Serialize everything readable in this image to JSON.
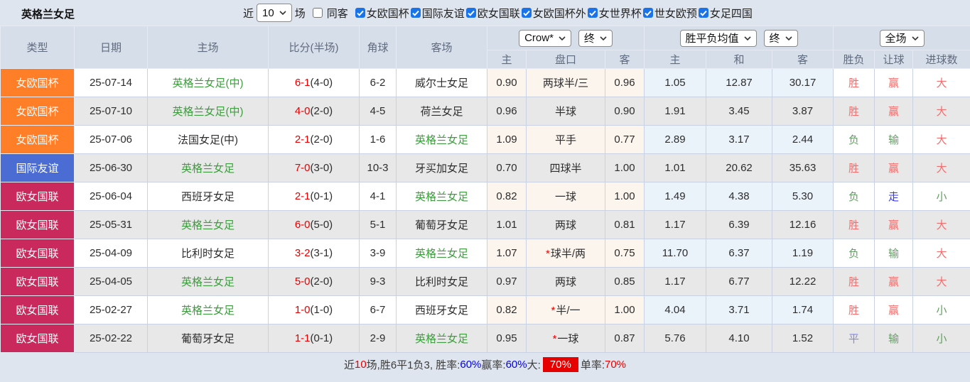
{
  "title": "英格兰女足",
  "colors": {
    "league_orange": "#ff7e27",
    "league_blue": "#4b6cd2",
    "league_rose": "#c9295c",
    "team_green": "#3d9c3d",
    "team_dark": "#2d2d2d",
    "score_red": "#e60000",
    "result_red": "#f26d6d",
    "result_green": "#5fa05f",
    "result_blue": "#3838ef",
    "result_purple": "#8686dc",
    "stat_blue": "#0000ee",
    "stat_red": "#e60000",
    "checkbox_blue": "#1a73e8"
  },
  "toolbar": {
    "recent_label": "近",
    "recent_count": "10",
    "games_label": "场",
    "same_away_label": "同客",
    "same_away_checked": false,
    "filters": [
      {
        "label": "女欧国杯",
        "checked": true
      },
      {
        "label": "国际友谊",
        "checked": true
      },
      {
        "label": "欧女国联",
        "checked": true
      },
      {
        "label": "女欧国杯外",
        "checked": true
      },
      {
        "label": "女世界杯",
        "checked": true
      },
      {
        "label": "世女欧预",
        "checked": true
      },
      {
        "label": "女足四国",
        "checked": true
      }
    ]
  },
  "table": {
    "headers": {
      "type": "类型",
      "date": "日期",
      "home": "主场",
      "score": "比分(半场)",
      "corner": "角球",
      "away": "客场",
      "selects": {
        "bookmaker": "Crow*",
        "odds_time": "终",
        "avg_type": "胜平负均值",
        "avg_time": "终",
        "period": "全场"
      },
      "sub": {
        "odds_home": "主",
        "handicap": "盘口",
        "odds_away": "客",
        "avg_home": "主",
        "avg_draw": "和",
        "avg_away": "客",
        "result": "胜负",
        "let_ball": "让球",
        "goals": "进球数"
      }
    },
    "rows": [
      {
        "type": "女欧国杯",
        "type_color": "league_orange",
        "date": "25-07-14",
        "home": "英格兰女足(中)",
        "home_green": true,
        "score_ft": "6-1",
        "score_ht": "(4-0)",
        "corner": "6-2",
        "away": "威尔士女足",
        "away_green": false,
        "odds_home": "0.90",
        "handicap": "两球半/三",
        "handicap_star": false,
        "odds_away": "0.96",
        "avg_home": "1.05",
        "avg_draw": "12.87",
        "avg_away": "30.17",
        "result": "胜",
        "result_color": "result_red",
        "let": "赢",
        "let_color": "result_red",
        "goals": "大",
        "goals_color": "result_red"
      },
      {
        "type": "女欧国杯",
        "type_color": "league_orange",
        "date": "25-07-10",
        "home": "英格兰女足(中)",
        "home_green": true,
        "score_ft": "4-0",
        "score_ht": "(2-0)",
        "corner": "4-5",
        "away": "荷兰女足",
        "away_green": false,
        "odds_home": "0.96",
        "handicap": "半球",
        "handicap_star": false,
        "odds_away": "0.90",
        "avg_home": "1.91",
        "avg_draw": "3.45",
        "avg_away": "3.87",
        "result": "胜",
        "result_color": "result_red",
        "let": "赢",
        "let_color": "result_red",
        "goals": "大",
        "goals_color": "result_red"
      },
      {
        "type": "女欧国杯",
        "type_color": "league_orange",
        "date": "25-07-06",
        "home": "法国女足(中)",
        "home_green": false,
        "score_ft": "2-1",
        "score_ht": "(2-0)",
        "corner": "1-6",
        "away": "英格兰女足",
        "away_green": true,
        "odds_home": "1.09",
        "handicap": "平手",
        "handicap_star": false,
        "odds_away": "0.77",
        "avg_home": "2.89",
        "avg_draw": "3.17",
        "avg_away": "2.44",
        "result": "负",
        "result_color": "result_green",
        "let": "输",
        "let_color": "result_green",
        "goals": "大",
        "goals_color": "result_red"
      },
      {
        "type": "国际友谊",
        "type_color": "league_blue",
        "date": "25-06-30",
        "home": "英格兰女足",
        "home_green": true,
        "score_ft": "7-0",
        "score_ht": "(3-0)",
        "corner": "10-3",
        "away": "牙买加女足",
        "away_green": false,
        "odds_home": "0.70",
        "handicap": "四球半",
        "handicap_star": false,
        "odds_away": "1.00",
        "avg_home": "1.01",
        "avg_draw": "20.62",
        "avg_away": "35.63",
        "result": "胜",
        "result_color": "result_red",
        "let": "赢",
        "let_color": "result_red",
        "goals": "大",
        "goals_color": "result_red"
      },
      {
        "type": "欧女国联",
        "type_color": "league_rose",
        "date": "25-06-04",
        "home": "西班牙女足",
        "home_green": false,
        "score_ft": "2-1",
        "score_ht": "(0-1)",
        "corner": "4-1",
        "away": "英格兰女足",
        "away_green": true,
        "odds_home": "0.82",
        "handicap": "一球",
        "handicap_star": false,
        "odds_away": "1.00",
        "avg_home": "1.49",
        "avg_draw": "4.38",
        "avg_away": "5.30",
        "result": "负",
        "result_color": "result_green",
        "let": "走",
        "let_color": "result_blue",
        "goals": "小",
        "goals_color": "result_green"
      },
      {
        "type": "欧女国联",
        "type_color": "league_rose",
        "date": "25-05-31",
        "home": "英格兰女足",
        "home_green": true,
        "score_ft": "6-0",
        "score_ht": "(5-0)",
        "corner": "5-1",
        "away": "葡萄牙女足",
        "away_green": false,
        "odds_home": "1.01",
        "handicap": "两球",
        "handicap_star": false,
        "odds_away": "0.81",
        "avg_home": "1.17",
        "avg_draw": "6.39",
        "avg_away": "12.16",
        "result": "胜",
        "result_color": "result_red",
        "let": "赢",
        "let_color": "result_red",
        "goals": "大",
        "goals_color": "result_red"
      },
      {
        "type": "欧女国联",
        "type_color": "league_rose",
        "date": "25-04-09",
        "home": "比利时女足",
        "home_green": false,
        "score_ft": "3-2",
        "score_ht": "(3-1)",
        "corner": "3-9",
        "away": "英格兰女足",
        "away_green": true,
        "odds_home": "1.07",
        "handicap": "球半/两",
        "handicap_star": true,
        "odds_away": "0.75",
        "avg_home": "11.70",
        "avg_draw": "6.37",
        "avg_away": "1.19",
        "result": "负",
        "result_color": "result_green",
        "let": "输",
        "let_color": "result_green",
        "goals": "大",
        "goals_color": "result_red"
      },
      {
        "type": "欧女国联",
        "type_color": "league_rose",
        "date": "25-04-05",
        "home": "英格兰女足",
        "home_green": true,
        "score_ft": "5-0",
        "score_ht": "(2-0)",
        "corner": "9-3",
        "away": "比利时女足",
        "away_green": false,
        "odds_home": "0.97",
        "handicap": "两球",
        "handicap_star": false,
        "odds_away": "0.85",
        "avg_home": "1.17",
        "avg_draw": "6.77",
        "avg_away": "12.22",
        "result": "胜",
        "result_color": "result_red",
        "let": "赢",
        "let_color": "result_red",
        "goals": "大",
        "goals_color": "result_red"
      },
      {
        "type": "欧女国联",
        "type_color": "league_rose",
        "date": "25-02-27",
        "home": "英格兰女足",
        "home_green": true,
        "score_ft": "1-0",
        "score_ht": "(1-0)",
        "corner": "6-7",
        "away": "西班牙女足",
        "away_green": false,
        "odds_home": "0.82",
        "handicap": "半/一",
        "handicap_star": true,
        "odds_away": "1.00",
        "avg_home": "4.04",
        "avg_draw": "3.71",
        "avg_away": "1.74",
        "result": "胜",
        "result_color": "result_red",
        "let": "赢",
        "let_color": "result_red",
        "goals": "小",
        "goals_color": "result_green"
      },
      {
        "type": "欧女国联",
        "type_color": "league_rose",
        "date": "25-02-22",
        "home": "葡萄牙女足",
        "home_green": false,
        "score_ft": "1-1",
        "score_ht": "(0-1)",
        "corner": "2-9",
        "away": "英格兰女足",
        "away_green": true,
        "odds_home": "0.95",
        "handicap": "一球",
        "handicap_star": true,
        "odds_away": "0.87",
        "avg_home": "5.76",
        "avg_draw": "4.10",
        "avg_away": "1.52",
        "result": "平",
        "result_color": "result_purple",
        "let": "输",
        "let_color": "result_green",
        "goals": "小",
        "goals_color": "result_green"
      }
    ]
  },
  "footer": {
    "segments": [
      {
        "t": "近",
        "s": "dark"
      },
      {
        "t": "10",
        "s": "red"
      },
      {
        "t": "场,胜6平1负3, 胜率:",
        "s": "dark"
      },
      {
        "t": "60%",
        "s": "blue"
      },
      {
        "t": " 赢率:",
        "s": "dark"
      },
      {
        "t": "60%",
        "s": "blue"
      },
      {
        "t": " 大:",
        "s": "dark"
      },
      {
        "t": "70%",
        "s": "redbg"
      },
      {
        "t": " 单率:",
        "s": "dark"
      },
      {
        "t": "70%",
        "s": "red"
      }
    ]
  }
}
